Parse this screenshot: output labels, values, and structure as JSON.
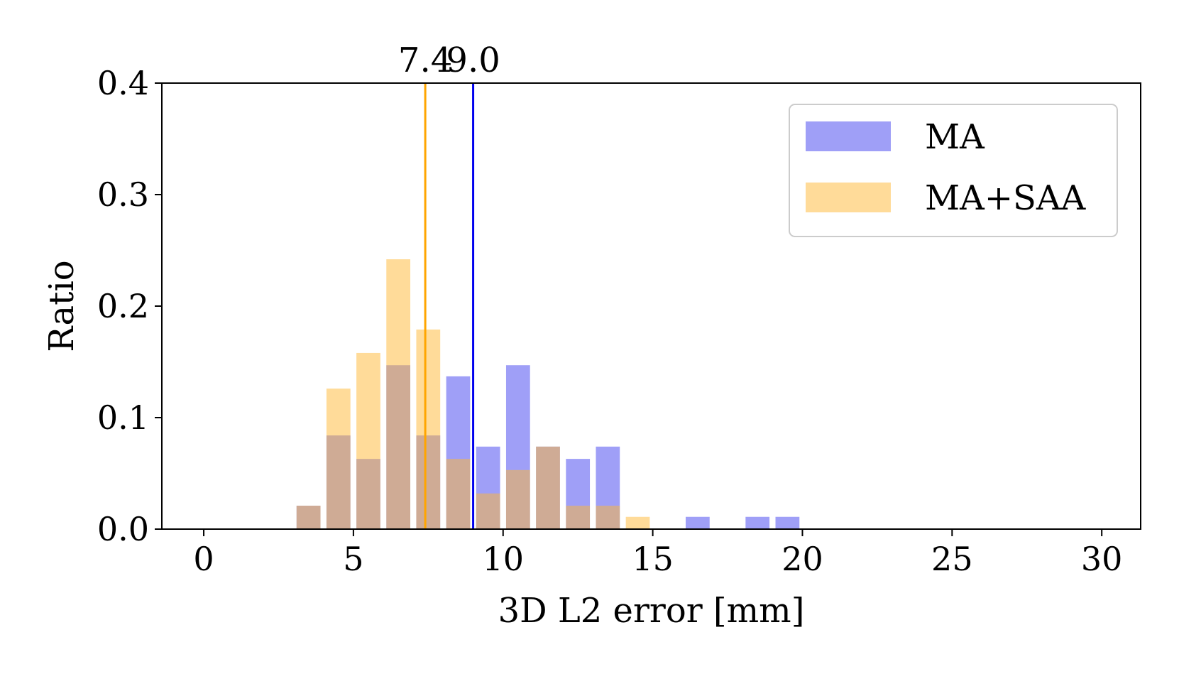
{
  "chart_data": {
    "type": "bar",
    "xlabel": "3D L2 error [mm]",
    "ylabel": "Ratio",
    "xlim": [
      -1.4,
      31.3
    ],
    "ylim": [
      0.0,
      0.4
    ],
    "xticks": [
      0,
      5,
      10,
      15,
      20,
      25,
      30
    ],
    "xtick_labels": [
      "0",
      "5",
      "10",
      "15",
      "20",
      "25",
      "30"
    ],
    "yticks": [
      0.0,
      0.1,
      0.2,
      0.3,
      0.4
    ],
    "ytick_labels": [
      "0.0",
      "0.1",
      "0.2",
      "0.3",
      "0.4"
    ],
    "bin_width": 0.8,
    "bins": [
      3.5,
      4.5,
      5.5,
      6.5,
      7.5,
      8.5,
      9.5,
      10.5,
      11.5,
      12.5,
      13.5,
      14.5,
      15.5,
      16.5,
      17.5,
      18.5,
      19.5
    ],
    "series": [
      {
        "name": "MA",
        "color": "#4040f0",
        "opacity": 0.5,
        "values": [
          0.021,
          0.084,
          0.063,
          0.147,
          0.084,
          0.137,
          0.074,
          0.147,
          0.074,
          0.063,
          0.074,
          0.0,
          0.0,
          0.011,
          0.0,
          0.011,
          0.011
        ]
      },
      {
        "name": "MA+SAA",
        "color": "#ffb733",
        "opacity": 0.5,
        "values": [
          0.021,
          0.126,
          0.158,
          0.242,
          0.179,
          0.063,
          0.032,
          0.053,
          0.074,
          0.021,
          0.021,
          0.011,
          0.0,
          0.0,
          0.0,
          0.0,
          0.0
        ]
      }
    ],
    "mean_lines": [
      {
        "series": "MA+SAA",
        "value": 7.4,
        "label": "7.4",
        "color": "#ffa500"
      },
      {
        "series": "MA",
        "value": 9.0,
        "label": "9.0",
        "color": "#0000ee"
      }
    ],
    "legend_placement": "top-right",
    "grid": false
  }
}
